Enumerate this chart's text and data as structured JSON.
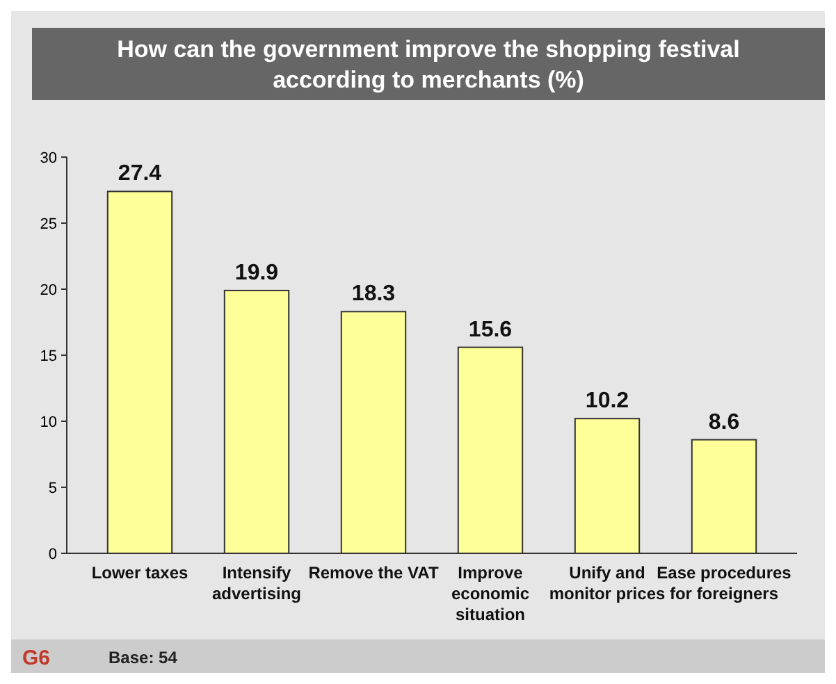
{
  "chart_data": {
    "type": "bar",
    "title": "How can the government improve the shopping festival according to merchants (%)",
    "categories": [
      "Lower taxes",
      "Intensify advertising",
      "Remove the VAT",
      "Improve economic situation",
      "Unify and monitor prices",
      "Ease procedures for foreigners"
    ],
    "values": [
      27.4,
      19.9,
      18.3,
      15.6,
      10.2,
      8.6
    ],
    "color": "#ffff99",
    "ylim": [
      0,
      30
    ],
    "yticks": [
      0,
      5,
      10,
      15,
      20,
      25,
      30
    ],
    "grid": false,
    "data_labels": true,
    "annotations": [
      "G6",
      "Base: 54"
    ]
  }
}
